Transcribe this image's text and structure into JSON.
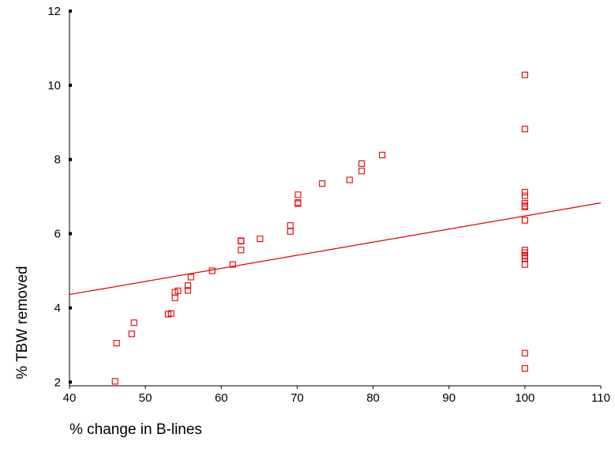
{
  "chart_data": {
    "type": "scatter",
    "xlabel": "% change in B-lines",
    "ylabel": "% TBW removed",
    "xlim": [
      40,
      110
    ],
    "ylim": [
      1.9,
      12
    ],
    "x_ticks": [
      40,
      50,
      60,
      70,
      80,
      90,
      100,
      110
    ],
    "y_ticks": [
      2,
      4,
      6,
      8,
      10,
      12
    ],
    "x_tick_labels": [
      "40",
      "50",
      "60",
      "70",
      "80",
      "90",
      "100",
      "110"
    ],
    "y_tick_labels": [
      "2",
      "4",
      "6",
      "8",
      "10",
      "12"
    ],
    "grid": false,
    "legend": "none",
    "colors": {
      "points": "#e00000",
      "fit_line": "#e00000",
      "axes": "#000000"
    },
    "marker": "open-square",
    "points": [
      {
        "x": 46.0,
        "y": 2.02
      },
      {
        "x": 46.2,
        "y": 3.05
      },
      {
        "x": 48.2,
        "y": 3.3
      },
      {
        "x": 48.5,
        "y": 3.6
      },
      {
        "x": 53.0,
        "y": 3.83
      },
      {
        "x": 53.4,
        "y": 3.85
      },
      {
        "x": 53.9,
        "y": 4.27
      },
      {
        "x": 53.9,
        "y": 4.42
      },
      {
        "x": 54.3,
        "y": 4.46
      },
      {
        "x": 55.6,
        "y": 4.47
      },
      {
        "x": 55.6,
        "y": 4.6
      },
      {
        "x": 56.0,
        "y": 4.83
      },
      {
        "x": 58.8,
        "y": 5.0
      },
      {
        "x": 61.5,
        "y": 5.17
      },
      {
        "x": 62.6,
        "y": 5.56
      },
      {
        "x": 62.6,
        "y": 5.8
      },
      {
        "x": 62.6,
        "y": 5.81
      },
      {
        "x": 65.1,
        "y": 5.86
      },
      {
        "x": 69.1,
        "y": 6.06
      },
      {
        "x": 69.1,
        "y": 6.22
      },
      {
        "x": 70.1,
        "y": 6.81
      },
      {
        "x": 70.1,
        "y": 6.84
      },
      {
        "x": 70.1,
        "y": 7.05
      },
      {
        "x": 73.3,
        "y": 7.35
      },
      {
        "x": 76.9,
        "y": 7.45
      },
      {
        "x": 78.5,
        "y": 7.69
      },
      {
        "x": 78.5,
        "y": 7.89
      },
      {
        "x": 81.2,
        "y": 8.12
      },
      {
        "x": 100,
        "y": 10.28
      },
      {
        "x": 100,
        "y": 8.82
      },
      {
        "x": 100,
        "y": 7.12
      },
      {
        "x": 100,
        "y": 7.02
      },
      {
        "x": 100,
        "y": 6.82
      },
      {
        "x": 100,
        "y": 6.75
      },
      {
        "x": 100,
        "y": 6.72
      },
      {
        "x": 100,
        "y": 6.36
      },
      {
        "x": 100,
        "y": 5.56
      },
      {
        "x": 100,
        "y": 5.49
      },
      {
        "x": 100,
        "y": 5.42
      },
      {
        "x": 100,
        "y": 5.38
      },
      {
        "x": 100,
        "y": 5.33
      },
      {
        "x": 100,
        "y": 5.17
      },
      {
        "x": 100,
        "y": 2.78
      },
      {
        "x": 100,
        "y": 2.37
      }
    ],
    "fit_line": {
      "x": [
        40,
        110
      ],
      "y": [
        4.36,
        6.83
      ]
    }
  }
}
